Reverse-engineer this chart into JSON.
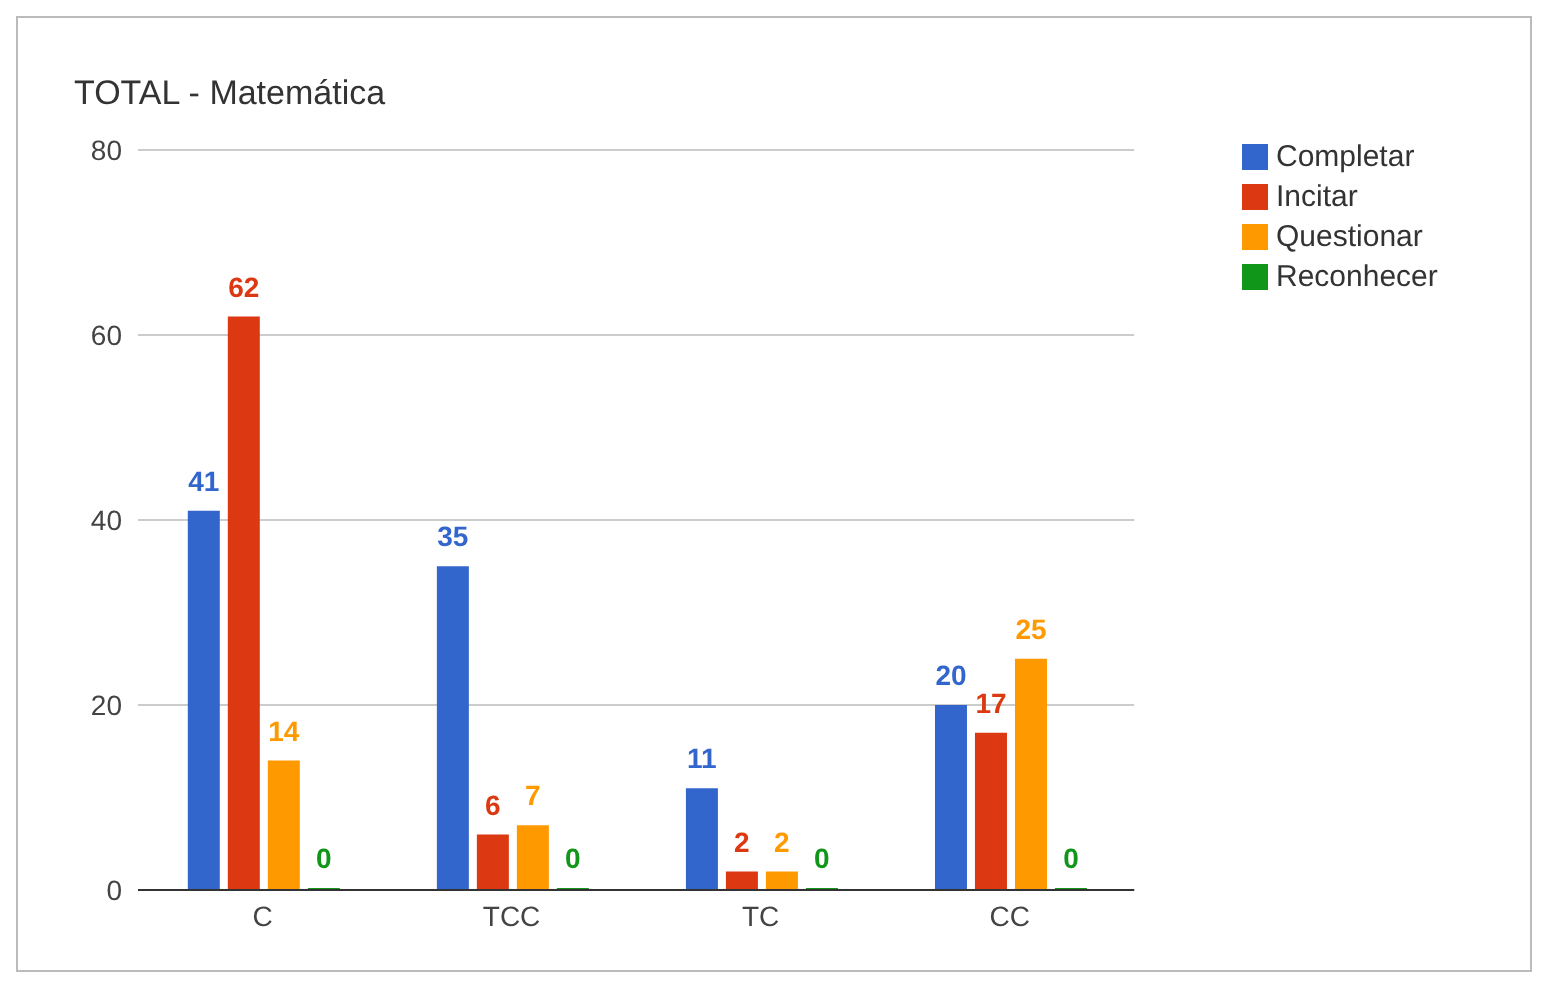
{
  "chart_data": {
    "type": "bar",
    "title": "TOTAL - Matemática",
    "categories": [
      "C",
      "TCC",
      "TC",
      "CC"
    ],
    "series": [
      {
        "name": "Completar",
        "color": "#3366cc",
        "values": [
          41,
          35,
          11,
          20
        ]
      },
      {
        "name": "Incitar",
        "color": "#dc3912",
        "values": [
          62,
          6,
          2,
          17
        ]
      },
      {
        "name": "Questionar",
        "color": "#ff9900",
        "values": [
          14,
          7,
          2,
          25
        ]
      },
      {
        "name": "Reconhecer",
        "color": "#109618",
        "values": [
          0,
          0,
          0,
          0
        ]
      }
    ],
    "ylim": [
      0,
      80
    ],
    "yticks": [
      0,
      20,
      40,
      60,
      80
    ],
    "grid": "y",
    "legend": "top right",
    "data_labels": true
  }
}
